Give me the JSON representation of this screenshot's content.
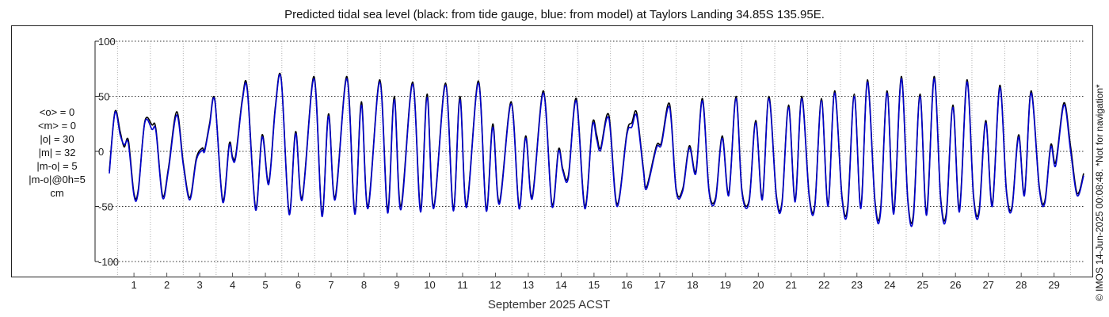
{
  "chart_data": {
    "type": "line",
    "title": "Predicted tidal sea level (black: from tide gauge, blue: from model) at Taylors Landing 34.85S 135.95E.",
    "xlabel": "September 2025 ACST",
    "ylabel": "",
    "ylim": [
      -100,
      100
    ],
    "yticks": [
      100,
      50,
      0,
      -50,
      -100
    ],
    "xticks": [
      "1",
      "2",
      "3",
      "4",
      "5",
      "6",
      "7",
      "8",
      "9",
      "10",
      "11",
      "12",
      "13",
      "14",
      "15",
      "16",
      "17",
      "18",
      "19",
      "20",
      "21",
      "22",
      "23",
      "24",
      "25",
      "26",
      "27",
      "28",
      "29"
    ],
    "x_range_days": [
      0.75,
      30.4
    ],
    "grid": true,
    "series": [
      {
        "name": "tide gauge",
        "color": "#000000",
        "points": [
          [
            0.75,
            -18
          ],
          [
            0.92,
            36
          ],
          [
            1.08,
            18
          ],
          [
            1.2,
            4
          ],
          [
            1.33,
            10
          ],
          [
            1.5,
            -38
          ],
          [
            1.63,
            -35
          ],
          [
            1.83,
            27
          ],
          [
            2.05,
            24
          ],
          [
            2.17,
            20
          ],
          [
            2.37,
            -40
          ],
          [
            2.55,
            -15
          ],
          [
            2.8,
            36
          ],
          [
            3.0,
            -10
          ],
          [
            3.2,
            -42
          ],
          [
            3.4,
            -6
          ],
          [
            3.58,
            3
          ],
          [
            3.65,
            1
          ],
          [
            3.8,
            25
          ],
          [
            3.96,
            47
          ],
          [
            4.2,
            -44
          ],
          [
            4.4,
            7
          ],
          [
            4.5,
            -5
          ],
          [
            4.6,
            -3
          ],
          [
            4.8,
            48
          ],
          [
            4.95,
            57
          ],
          [
            5.2,
            -51
          ],
          [
            5.4,
            15
          ],
          [
            5.6,
            -28
          ],
          [
            5.8,
            40
          ],
          [
            5.98,
            66
          ],
          [
            6.22,
            -55
          ],
          [
            6.42,
            18
          ],
          [
            6.62,
            -42
          ],
          [
            6.98,
            68
          ],
          [
            7.22,
            -57
          ],
          [
            7.42,
            34
          ],
          [
            7.62,
            -42
          ],
          [
            7.98,
            68
          ],
          [
            8.22,
            -55
          ],
          [
            8.42,
            45
          ],
          [
            8.62,
            -50
          ],
          [
            8.98,
            65
          ],
          [
            9.22,
            -53
          ],
          [
            9.42,
            50
          ],
          [
            9.62,
            -50
          ],
          [
            9.98,
            63
          ],
          [
            10.22,
            -52
          ],
          [
            10.42,
            52
          ],
          [
            10.62,
            -50
          ],
          [
            10.98,
            62
          ],
          [
            11.22,
            -52
          ],
          [
            11.42,
            50
          ],
          [
            11.62,
            -49
          ],
          [
            11.98,
            64
          ],
          [
            12.22,
            -52
          ],
          [
            12.42,
            25
          ],
          [
            12.62,
            -46
          ],
          [
            12.98,
            45
          ],
          [
            13.22,
            -50
          ],
          [
            13.42,
            14
          ],
          [
            13.62,
            -41
          ],
          [
            13.96,
            55
          ],
          [
            14.22,
            -48
          ],
          [
            14.42,
            2
          ],
          [
            14.55,
            -16
          ],
          [
            14.72,
            -22
          ],
          [
            14.96,
            48
          ],
          [
            15.22,
            -50
          ],
          [
            15.45,
            25
          ],
          [
            15.58,
            15
          ],
          [
            15.7,
            3
          ],
          [
            15.95,
            33
          ],
          [
            16.2,
            -48
          ],
          [
            16.5,
            17
          ],
          [
            16.65,
            26
          ],
          [
            16.8,
            35
          ],
          [
            17.0,
            -15
          ],
          [
            17.1,
            -32
          ],
          [
            17.4,
            5
          ],
          [
            17.55,
            8
          ],
          [
            17.8,
            43
          ],
          [
            18.0,
            -34
          ],
          [
            18.2,
            -34
          ],
          [
            18.4,
            5
          ],
          [
            18.6,
            -18
          ],
          [
            18.8,
            48
          ],
          [
            19.0,
            -35
          ],
          [
            19.2,
            -42
          ],
          [
            19.4,
            14
          ],
          [
            19.6,
            -38
          ],
          [
            19.82,
            50
          ],
          [
            20.0,
            -35
          ],
          [
            20.22,
            -44
          ],
          [
            20.42,
            28
          ],
          [
            20.62,
            -42
          ],
          [
            20.82,
            50
          ],
          [
            21.05,
            -40
          ],
          [
            21.22,
            -46
          ],
          [
            21.42,
            42
          ],
          [
            21.62,
            -44
          ],
          [
            21.82,
            50
          ],
          [
            22.05,
            -40
          ],
          [
            22.22,
            -48
          ],
          [
            22.42,
            48
          ],
          [
            22.62,
            -48
          ],
          [
            22.82,
            55
          ],
          [
            23.05,
            -42
          ],
          [
            23.22,
            -50
          ],
          [
            23.42,
            52
          ],
          [
            23.62,
            -50
          ],
          [
            23.82,
            65
          ],
          [
            24.05,
            -45
          ],
          [
            24.22,
            -53
          ],
          [
            24.42,
            55
          ],
          [
            24.62,
            -54
          ],
          [
            24.85,
            68
          ],
          [
            25.05,
            -44
          ],
          [
            25.22,
            -57
          ],
          [
            25.42,
            52
          ],
          [
            25.62,
            -55
          ],
          [
            25.85,
            68
          ],
          [
            26.05,
            -42
          ],
          [
            26.22,
            -56
          ],
          [
            26.42,
            42
          ],
          [
            26.62,
            -52
          ],
          [
            26.85,
            65
          ],
          [
            27.05,
            -40
          ],
          [
            27.22,
            -53
          ],
          [
            27.42,
            28
          ],
          [
            27.62,
            -48
          ],
          [
            27.85,
            60
          ],
          [
            28.05,
            -35
          ],
          [
            28.22,
            -50
          ],
          [
            28.42,
            15
          ],
          [
            28.6,
            -38
          ],
          [
            28.8,
            55
          ],
          [
            29.05,
            -32
          ],
          [
            29.22,
            -45
          ],
          [
            29.4,
            6
          ],
          [
            29.55,
            -10
          ],
          [
            29.8,
            44
          ],
          [
            30.0,
            5
          ],
          [
            30.2,
            -38
          ],
          [
            30.4,
            -20
          ]
        ]
      },
      {
        "name": "model",
        "color": "#0000cc",
        "points": [
          [
            0.75,
            -20
          ],
          [
            0.92,
            35
          ],
          [
            1.08,
            15
          ],
          [
            1.2,
            6
          ],
          [
            1.33,
            7
          ],
          [
            1.5,
            -40
          ],
          [
            1.63,
            -37
          ],
          [
            1.83,
            26
          ],
          [
            2.05,
            20
          ],
          [
            2.17,
            18
          ],
          [
            2.37,
            -42
          ],
          [
            2.55,
            -17
          ],
          [
            2.8,
            33
          ],
          [
            3.0,
            -12
          ],
          [
            3.2,
            -44
          ],
          [
            3.4,
            -8
          ],
          [
            3.58,
            1
          ],
          [
            3.65,
            0
          ],
          [
            3.8,
            23
          ],
          [
            3.96,
            46
          ],
          [
            4.2,
            -46
          ],
          [
            4.4,
            5
          ],
          [
            4.5,
            -7
          ],
          [
            4.6,
            -5
          ],
          [
            4.8,
            46
          ],
          [
            4.95,
            55
          ],
          [
            5.2,
            -53
          ],
          [
            5.4,
            13
          ],
          [
            5.6,
            -30
          ],
          [
            5.8,
            38
          ],
          [
            5.98,
            65
          ],
          [
            6.22,
            -57
          ],
          [
            6.42,
            16
          ],
          [
            6.62,
            -44
          ],
          [
            6.98,
            66
          ],
          [
            7.22,
            -59
          ],
          [
            7.42,
            32
          ],
          [
            7.62,
            -44
          ],
          [
            7.98,
            66
          ],
          [
            8.22,
            -57
          ],
          [
            8.42,
            42
          ],
          [
            8.62,
            -52
          ],
          [
            8.98,
            63
          ],
          [
            9.22,
            -56
          ],
          [
            9.42,
            47
          ],
          [
            9.62,
            -53
          ],
          [
            9.98,
            61
          ],
          [
            10.22,
            -55
          ],
          [
            10.42,
            49
          ],
          [
            10.62,
            -52
          ],
          [
            10.98,
            60
          ],
          [
            11.22,
            -54
          ],
          [
            11.42,
            47
          ],
          [
            11.62,
            -51
          ],
          [
            11.98,
            62
          ],
          [
            12.22,
            -54
          ],
          [
            12.42,
            22
          ],
          [
            12.62,
            -48
          ],
          [
            12.98,
            43
          ],
          [
            13.22,
            -52
          ],
          [
            13.42,
            12
          ],
          [
            13.62,
            -43
          ],
          [
            13.96,
            53
          ],
          [
            14.22,
            -50
          ],
          [
            14.42,
            0
          ],
          [
            14.55,
            -18
          ],
          [
            14.72,
            -24
          ],
          [
            14.96,
            46
          ],
          [
            15.22,
            -52
          ],
          [
            15.45,
            23
          ],
          [
            15.58,
            11
          ],
          [
            15.7,
            1
          ],
          [
            15.95,
            30
          ],
          [
            16.2,
            -50
          ],
          [
            16.5,
            15
          ],
          [
            16.65,
            22
          ],
          [
            16.8,
            32
          ],
          [
            17.0,
            -17
          ],
          [
            17.1,
            -34
          ],
          [
            17.4,
            3
          ],
          [
            17.55,
            6
          ],
          [
            17.8,
            40
          ],
          [
            18.0,
            -36
          ],
          [
            18.2,
            -36
          ],
          [
            18.4,
            3
          ],
          [
            18.6,
            -20
          ],
          [
            18.8,
            46
          ],
          [
            19.0,
            -37
          ],
          [
            19.2,
            -44
          ],
          [
            19.4,
            12
          ],
          [
            19.6,
            -40
          ],
          [
            19.82,
            48
          ],
          [
            20.0,
            -37
          ],
          [
            20.22,
            -46
          ],
          [
            20.42,
            26
          ],
          [
            20.62,
            -44
          ],
          [
            20.82,
            48
          ],
          [
            21.05,
            -42
          ],
          [
            21.22,
            -48
          ],
          [
            21.42,
            40
          ],
          [
            21.62,
            -46
          ],
          [
            21.82,
            48
          ],
          [
            22.05,
            -42
          ],
          [
            22.22,
            -50
          ],
          [
            22.42,
            46
          ],
          [
            22.62,
            -50
          ],
          [
            22.82,
            53
          ],
          [
            23.05,
            -44
          ],
          [
            23.22,
            -53
          ],
          [
            23.42,
            50
          ],
          [
            23.62,
            -52
          ],
          [
            23.82,
            63
          ],
          [
            24.05,
            -47
          ],
          [
            24.22,
            -56
          ],
          [
            24.42,
            53
          ],
          [
            24.62,
            -57
          ],
          [
            24.85,
            66
          ],
          [
            25.05,
            -46
          ],
          [
            25.22,
            -60
          ],
          [
            25.42,
            50
          ],
          [
            25.62,
            -58
          ],
          [
            25.85,
            66
          ],
          [
            26.05,
            -44
          ],
          [
            26.22,
            -59
          ],
          [
            26.42,
            40
          ],
          [
            26.62,
            -55
          ],
          [
            26.85,
            63
          ],
          [
            27.05,
            -42
          ],
          [
            27.22,
            -56
          ],
          [
            27.42,
            26
          ],
          [
            27.62,
            -50
          ],
          [
            27.85,
            58
          ],
          [
            28.05,
            -37
          ],
          [
            28.22,
            -52
          ],
          [
            28.42,
            13
          ],
          [
            28.6,
            -40
          ],
          [
            28.8,
            53
          ],
          [
            29.05,
            -34
          ],
          [
            29.22,
            -47
          ],
          [
            29.4,
            4
          ],
          [
            29.55,
            -13
          ],
          [
            29.8,
            42
          ],
          [
            30.0,
            1
          ],
          [
            30.2,
            -40
          ],
          [
            30.4,
            -22
          ]
        ]
      }
    ]
  },
  "stats": [
    "<o> = 0",
    "<m> = 0",
    "|o| = 30",
    "|m| = 32",
    "|m-o| = 5",
    "|m-o|@0h=5",
    "cm"
  ],
  "footer": "© IMOS 14-Jun-2025 00:08:48. *Not for navigation*"
}
